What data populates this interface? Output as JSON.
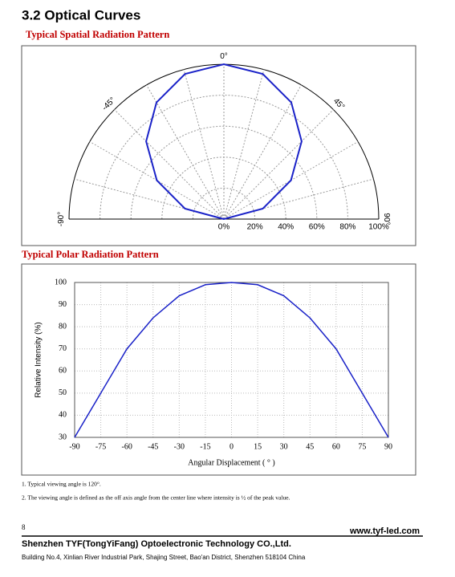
{
  "header": {
    "title": "3.2 Optical Curves"
  },
  "chart_data": [
    {
      "type": "polar",
      "title": "Typical Spatial Radiation Pattern",
      "x": [
        -90,
        -75,
        -60,
        -45,
        -30,
        -15,
        0,
        15,
        30,
        45,
        60,
        75,
        90
      ],
      "series": [
        {
          "color": "#1a22c8",
          "values": [
            0,
            26,
            50,
            71,
            87,
            97,
            100,
            97,
            87,
            71,
            50,
            26,
            0
          ]
        }
      ],
      "rlim": [
        0,
        100
      ],
      "rticks": [
        {
          "value": 0,
          "label": "0%"
        },
        {
          "value": 20,
          "label": "20%"
        },
        {
          "value": 40,
          "label": "40%"
        },
        {
          "value": 60,
          "label": "60%"
        },
        {
          "value": 80,
          "label": "80%"
        },
        {
          "value": 100,
          "label": "100%"
        }
      ],
      "angle_ticks": [
        {
          "value": -90,
          "label": "-90°"
        },
        {
          "value": -45,
          "label": "-45°"
        },
        {
          "value": 0,
          "label": "0°"
        },
        {
          "value": 45,
          "label": "45°"
        },
        {
          "value": 90,
          "label": "90°"
        }
      ],
      "grid": true
    },
    {
      "type": "line",
      "title": "Typical Polar Radiation Pattern",
      "x_label": "Angular Displacement ( ° )",
      "y_label": "Relative Intensity (%)",
      "x": [
        -90,
        -75,
        -60,
        -45,
        -30,
        -15,
        0,
        15,
        30,
        45,
        60,
        75,
        90
      ],
      "series": [
        {
          "color": "#1a22c8",
          "values": [
            30,
            50,
            70,
            84,
            94,
            99,
            100,
            99,
            94,
            84,
            70,
            50,
            30
          ]
        }
      ],
      "xlim": [
        -90,
        90
      ],
      "xticks": [
        -90,
        -75,
        -60,
        -45,
        -30,
        -15,
        0,
        15,
        30,
        45,
        60,
        75,
        90
      ],
      "ylim": [
        30,
        100
      ],
      "yticks": [
        30,
        40,
        50,
        60,
        70,
        80,
        90,
        100
      ],
      "grid": true
    }
  ],
  "notes": [
    "1. Typical viewing angle is 120°.",
    "2. The viewing angle is defined as the off axis angle from the center line where intensity is ½ of the peak value."
  ],
  "footer": {
    "page": "8",
    "website": "www.tyf-led.com",
    "company": "Shenzhen TYF(TongYiFang) Optoelectronic Technology CO.,Ltd.",
    "address": "Building No.4, Xinlian River Industrial Park, Shajing Street, Bao'an District, Shenzhen 518104 China"
  }
}
